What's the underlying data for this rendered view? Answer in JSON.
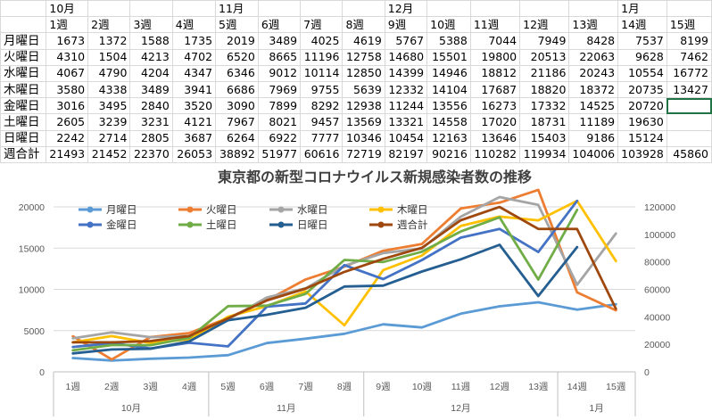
{
  "sheet": {
    "month_row": [
      "",
      "10月",
      "",
      "",
      "",
      "11月",
      "",
      "",
      "",
      "12月",
      "",
      "",
      "",
      "",
      "1月",
      ""
    ],
    "week_row": [
      "",
      "1週",
      "2週",
      "3週",
      "4週",
      "5週",
      "6週",
      "7週",
      "8週",
      "9週",
      "10週",
      "11週",
      "12週",
      "13週",
      "14週",
      "15週"
    ],
    "rows": [
      {
        "label": "月曜日",
        "values": [
          "1673",
          "1372",
          "1588",
          "1735",
          "2019",
          "3489",
          "4025",
          "4619",
          "5767",
          "5388",
          "7044",
          "7949",
          "8428",
          "7537",
          "8199"
        ]
      },
      {
        "label": "火曜日",
        "values": [
          "4310",
          "1504",
          "4213",
          "4702",
          "6520",
          "8665",
          "11196",
          "12758",
          "14680",
          "15501",
          "19800",
          "20513",
          "22063",
          "9628",
          "7462"
        ]
      },
      {
        "label": "水曜日",
        "values": [
          "4067",
          "4790",
          "4204",
          "4347",
          "6346",
          "9012",
          "10114",
          "12850",
          "14399",
          "14946",
          "18812",
          "21186",
          "20243",
          "10554",
          "16772"
        ]
      },
      {
        "label": "木曜日",
        "values": [
          "3580",
          "4338",
          "3489",
          "3941",
          "6686",
          "7969",
          "9755",
          "5639",
          "12332",
          "14104",
          "17687",
          "18820",
          "18372",
          "20735",
          "13427"
        ]
      },
      {
        "label": "金曜日",
        "values": [
          "3016",
          "3495",
          "2840",
          "3520",
          "3090",
          "7899",
          "8292",
          "12938",
          "11244",
          "13556",
          "16273",
          "17332",
          "14525",
          "20720",
          ""
        ]
      },
      {
        "label": "土曜日",
        "values": [
          "2605",
          "3239",
          "3231",
          "4121",
          "7967",
          "8021",
          "9457",
          "13569",
          "13321",
          "14558",
          "17020",
          "18731",
          "11189",
          "19630",
          ""
        ]
      },
      {
        "label": "日曜日",
        "values": [
          "2242",
          "2714",
          "2805",
          "3687",
          "6264",
          "6922",
          "7777",
          "10346",
          "10454",
          "12163",
          "13646",
          "15403",
          "9186",
          "15124",
          ""
        ]
      },
      {
        "label": "週合計",
        "values": [
          "21493",
          "21452",
          "22370",
          "26053",
          "38892",
          "51977",
          "60616",
          "72719",
          "82197",
          "90216",
          "110282",
          "119934",
          "104006",
          "103928",
          "45860"
        ]
      }
    ]
  },
  "chart_data": {
    "type": "line",
    "title": "東京都の新型コロナウイルス新規感染者数の推移",
    "categories": [
      "1週",
      "2週",
      "3週",
      "4週",
      "5週",
      "6週",
      "7週",
      "8週",
      "9週",
      "10週",
      "11週",
      "12週",
      "13週",
      "14週",
      "15週"
    ],
    "month_groups": [
      {
        "label": "10月",
        "start": 0,
        "end": 3
      },
      {
        "label": "11月",
        "start": 4,
        "end": 7
      },
      {
        "label": "12月",
        "start": 8,
        "end": 12
      },
      {
        "label": "1月",
        "start": 13,
        "end": 14
      }
    ],
    "y_left": {
      "min": 0,
      "max": 20000,
      "ticks": [
        "0",
        "5000",
        "10000",
        "15000",
        "20000"
      ]
    },
    "y_right": {
      "min": 0,
      "max": 120000,
      "ticks": [
        "0",
        "20000",
        "40000",
        "60000",
        "80000",
        "100000",
        "120000"
      ]
    },
    "series": [
      {
        "name": "月曜日",
        "color": "#5b9bd5",
        "axis": "left",
        "values": [
          1673,
          1372,
          1588,
          1735,
          2019,
          3489,
          4025,
          4619,
          5767,
          5388,
          7044,
          7949,
          8428,
          7537,
          8199
        ]
      },
      {
        "name": "火曜日",
        "color": "#ed7d31",
        "axis": "left",
        "values": [
          4310,
          1504,
          4213,
          4702,
          6520,
          8665,
          11196,
          12758,
          14680,
          15501,
          19800,
          20513,
          22063,
          9628,
          7462
        ]
      },
      {
        "name": "水曜日",
        "color": "#a5a5a5",
        "axis": "left",
        "values": [
          4067,
          4790,
          4204,
          4347,
          6346,
          9012,
          10114,
          12850,
          14399,
          14946,
          18812,
          21186,
          20243,
          10554,
          16772
        ]
      },
      {
        "name": "木曜日",
        "color": "#ffc000",
        "axis": "left",
        "values": [
          3580,
          4338,
          3489,
          3941,
          6686,
          7969,
          9755,
          5639,
          12332,
          14104,
          17687,
          18820,
          18372,
          20735,
          13427
        ]
      },
      {
        "name": "金曜日",
        "color": "#4472c4",
        "axis": "left",
        "values": [
          3016,
          3495,
          2840,
          3520,
          3090,
          7899,
          8292,
          12938,
          11244,
          13556,
          16273,
          17332,
          14525,
          20720,
          null
        ]
      },
      {
        "name": "土曜日",
        "color": "#70ad47",
        "axis": "left",
        "values": [
          2605,
          3239,
          3231,
          4121,
          7967,
          8021,
          9457,
          13569,
          13321,
          14558,
          17020,
          18731,
          11189,
          19630,
          null
        ]
      },
      {
        "name": "日曜日",
        "color": "#255e91",
        "axis": "left",
        "values": [
          2242,
          2714,
          2805,
          3687,
          6264,
          6922,
          7777,
          10346,
          10454,
          12163,
          13646,
          15403,
          9186,
          15124,
          null
        ]
      },
      {
        "name": "週合計",
        "color": "#9e480e",
        "axis": "right",
        "values": [
          21493,
          21452,
          22370,
          26053,
          38892,
          51977,
          60616,
          72719,
          82197,
          90216,
          110282,
          119934,
          104006,
          103928,
          45860
        ]
      }
    ],
    "legend": "top-left"
  }
}
